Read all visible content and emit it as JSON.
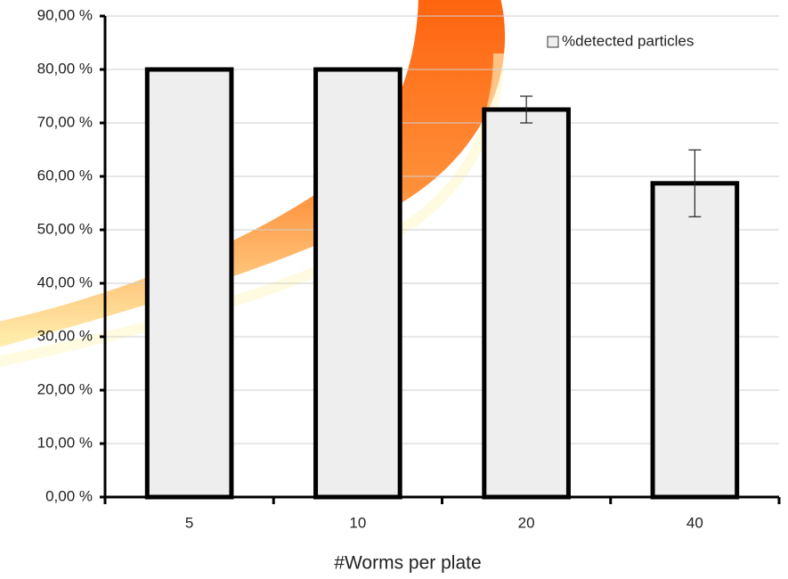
{
  "chart_data": {
    "type": "bar",
    "x_label": "#Worms per plate",
    "categories": [
      "5",
      "10",
      "20",
      "40"
    ],
    "series": [
      {
        "name": "%detected particles",
        "color": "#eeeeee",
        "values": [
          80,
          80,
          72.5,
          58.7
        ],
        "errors": [
          null,
          null,
          2.5,
          6.25
        ]
      }
    ],
    "ylim": [
      0,
      90
    ],
    "yticks": [
      {
        "value": 0,
        "label": "0,00 %"
      },
      {
        "value": 10,
        "label": "10,00 %"
      },
      {
        "value": 20,
        "label": "20,00 %"
      },
      {
        "value": 30,
        "label": "30,00 %"
      },
      {
        "value": 40,
        "label": "40,00 %"
      },
      {
        "value": 50,
        "label": "50,00 %"
      },
      {
        "value": 60,
        "label": "60,00 %"
      },
      {
        "value": 70,
        "label": "70,00 %"
      },
      {
        "value": 80,
        "label": "80,00 %"
      },
      {
        "value": 90,
        "label": "90,00 %"
      }
    ],
    "grid": true,
    "legend": "top-right"
  }
}
